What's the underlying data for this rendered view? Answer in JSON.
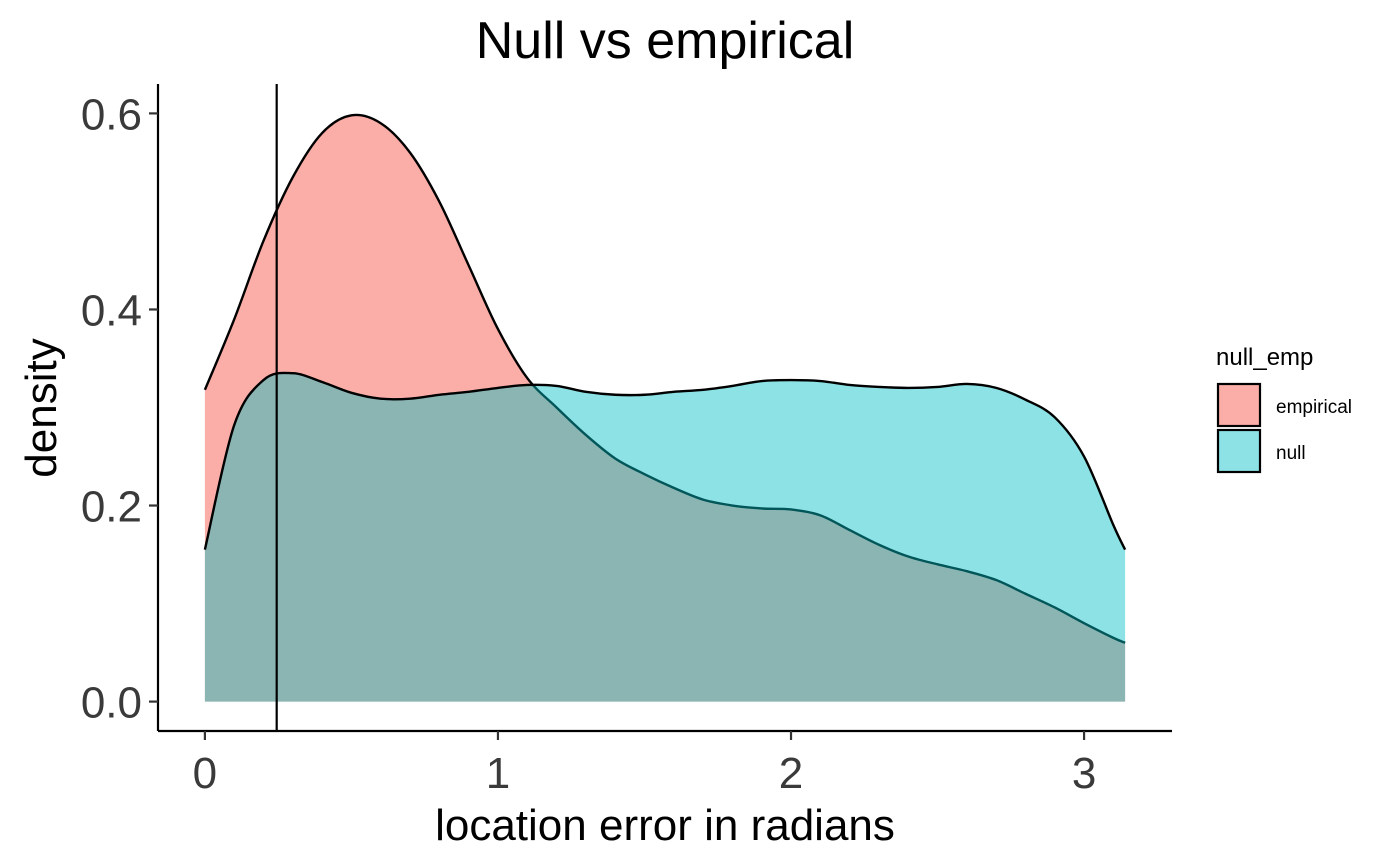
{
  "chart_data": {
    "type": "area",
    "title": "Null vs empirical",
    "xlabel": "location error in radians",
    "ylabel": "density",
    "xlim": [
      -0.16,
      3.3
    ],
    "ylim": [
      -0.03,
      0.63
    ],
    "x_ticks": [
      0,
      1,
      2,
      3
    ],
    "y_ticks": [
      0.0,
      0.2,
      0.4,
      0.6
    ],
    "x_tick_labels": [
      "0",
      "1",
      "2",
      "3"
    ],
    "y_tick_labels": [
      "0.0",
      "0.2",
      "0.4",
      "0.6"
    ],
    "grid": false,
    "legend": {
      "title": "null_emp",
      "position": "right"
    },
    "vline": {
      "x": 0.245
    },
    "series": [
      {
        "name": "empirical",
        "color": "#F8766D",
        "fill_opacity": 0.6,
        "points": [
          [
            0.0,
            0.318
          ],
          [
            0.1,
            0.39
          ],
          [
            0.2,
            0.47
          ],
          [
            0.3,
            0.535
          ],
          [
            0.4,
            0.58
          ],
          [
            0.5,
            0.598
          ],
          [
            0.6,
            0.59
          ],
          [
            0.7,
            0.56
          ],
          [
            0.8,
            0.51
          ],
          [
            0.9,
            0.445
          ],
          [
            1.0,
            0.38
          ],
          [
            1.1,
            0.33
          ],
          [
            1.2,
            0.3
          ],
          [
            1.3,
            0.272
          ],
          [
            1.4,
            0.248
          ],
          [
            1.5,
            0.232
          ],
          [
            1.6,
            0.218
          ],
          [
            1.7,
            0.206
          ],
          [
            1.8,
            0.2
          ],
          [
            1.9,
            0.197
          ],
          [
            2.0,
            0.196
          ],
          [
            2.1,
            0.19
          ],
          [
            2.2,
            0.175
          ],
          [
            2.3,
            0.16
          ],
          [
            2.4,
            0.148
          ],
          [
            2.5,
            0.14
          ],
          [
            2.6,
            0.133
          ],
          [
            2.7,
            0.124
          ],
          [
            2.8,
            0.11
          ],
          [
            2.9,
            0.096
          ],
          [
            3.0,
            0.08
          ],
          [
            3.1,
            0.065
          ],
          [
            3.14,
            0.06
          ]
        ]
      },
      {
        "name": "null",
        "color": "#00BFC4",
        "fill_opacity": 0.45,
        "points": [
          [
            0.0,
            0.155
          ],
          [
            0.1,
            0.282
          ],
          [
            0.2,
            0.328
          ],
          [
            0.3,
            0.335
          ],
          [
            0.4,
            0.326
          ],
          [
            0.5,
            0.315
          ],
          [
            0.6,
            0.309
          ],
          [
            0.7,
            0.309
          ],
          [
            0.8,
            0.313
          ],
          [
            0.9,
            0.316
          ],
          [
            1.0,
            0.32
          ],
          [
            1.1,
            0.323
          ],
          [
            1.2,
            0.322
          ],
          [
            1.3,
            0.316
          ],
          [
            1.4,
            0.313
          ],
          [
            1.5,
            0.313
          ],
          [
            1.6,
            0.316
          ],
          [
            1.7,
            0.318
          ],
          [
            1.8,
            0.322
          ],
          [
            1.9,
            0.327
          ],
          [
            2.0,
            0.328
          ],
          [
            2.1,
            0.327
          ],
          [
            2.2,
            0.323
          ],
          [
            2.3,
            0.321
          ],
          [
            2.4,
            0.32
          ],
          [
            2.5,
            0.321
          ],
          [
            2.6,
            0.324
          ],
          [
            2.7,
            0.32
          ],
          [
            2.8,
            0.308
          ],
          [
            2.9,
            0.29
          ],
          [
            3.0,
            0.25
          ],
          [
            3.1,
            0.18
          ],
          [
            3.14,
            0.155
          ]
        ]
      }
    ]
  }
}
